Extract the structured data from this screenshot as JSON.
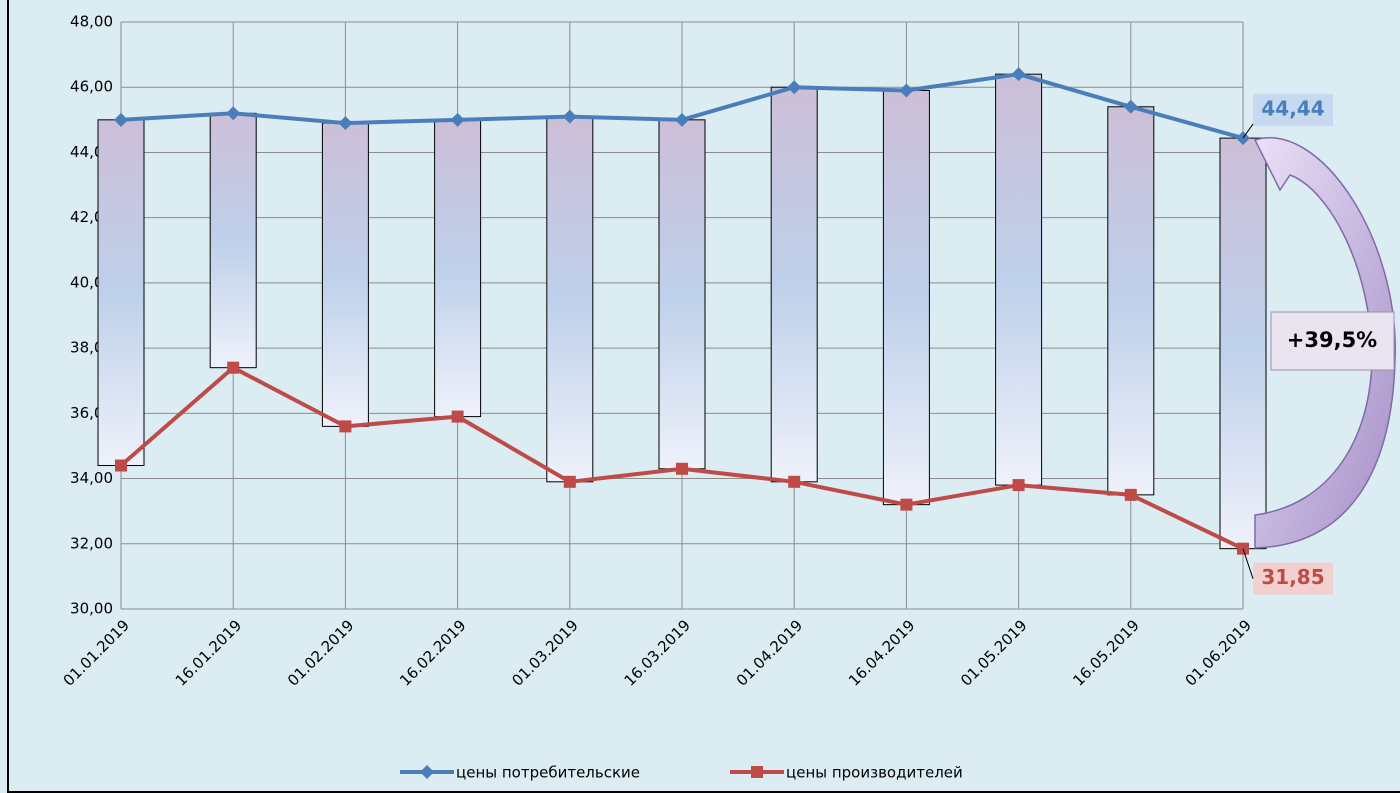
{
  "chart_data": {
    "type": "line",
    "categories": [
      "01.01.2019",
      "16.01.2019",
      "01.02.2019",
      "16.02.2019",
      "01.03.2019",
      "16.03.2019",
      "01.04.2019",
      "16.04.2019",
      "01.05.2019",
      "16.05.2019",
      "01.06.2019"
    ],
    "series": [
      {
        "name": "цены потребительские",
        "color": "#4a7ebb",
        "marker": "diamond",
        "values": [
          45.0,
          45.2,
          44.9,
          45.0,
          45.1,
          45.0,
          46.0,
          45.9,
          46.4,
          45.4,
          44.44
        ],
        "value_labels": [
          null,
          null,
          null,
          null,
          null,
          null,
          null,
          null,
          null,
          null,
          "44,44"
        ]
      },
      {
        "name": "цены производителей",
        "color": "#be4b48",
        "marker": "square",
        "values": [
          34.4,
          37.4,
          35.6,
          35.9,
          33.9,
          34.3,
          33.9,
          33.2,
          33.8,
          33.5,
          31.85
        ],
        "value_labels": [
          null,
          null,
          null,
          null,
          null,
          null,
          null,
          null,
          null,
          null,
          "31,85"
        ]
      }
    ],
    "high_low_bars": true,
    "annotation": "+39,5%",
    "ylim": [
      30,
      48
    ],
    "yticks": [
      {
        "value": 30,
        "label": "30,00"
      },
      {
        "value": 32,
        "label": "32,00"
      },
      {
        "value": 34,
        "label": "34,00"
      },
      {
        "value": 36,
        "label": "36,00"
      },
      {
        "value": 38,
        "label": "38,00"
      },
      {
        "value": 40,
        "label": "40,00"
      },
      {
        "value": 42,
        "label": "42,00"
      },
      {
        "value": 44,
        "label": "44,00"
      },
      {
        "value": 46,
        "label": "46,00"
      },
      {
        "value": 48,
        "label": "48,00"
      }
    ],
    "grid": true,
    "legend": "bottom"
  }
}
